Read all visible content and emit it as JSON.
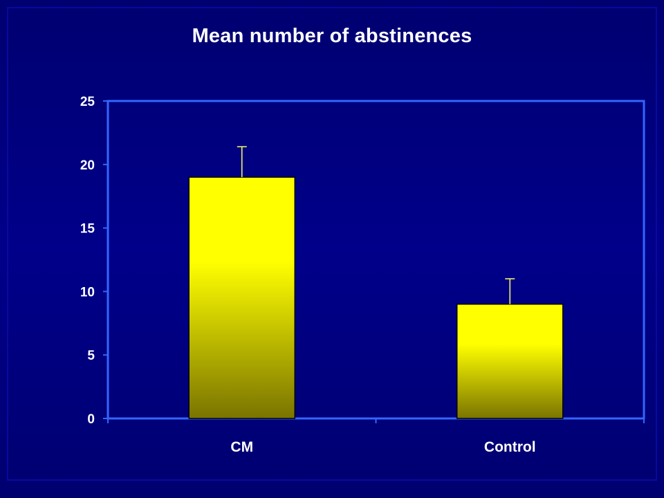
{
  "slide": {
    "title": "Mean number of abstinences"
  },
  "colors": {
    "background": "#000080",
    "axis": "#3366ff",
    "bar_top": "#ffff00",
    "bar_bottom": "#7a7400",
    "error_bar": "#ffff66",
    "text": "#ffffff"
  },
  "chart_data": {
    "type": "bar",
    "title": "Mean number of abstinences",
    "xlabel": "",
    "ylabel": "",
    "categories": [
      "CM",
      "Control"
    ],
    "values": [
      19,
      9
    ],
    "error_upper": [
      21.4,
      11
    ],
    "ylim": [
      0,
      25
    ],
    "yticks": [
      0,
      5,
      10,
      15,
      20,
      25
    ],
    "grid": false,
    "legend": "none"
  }
}
